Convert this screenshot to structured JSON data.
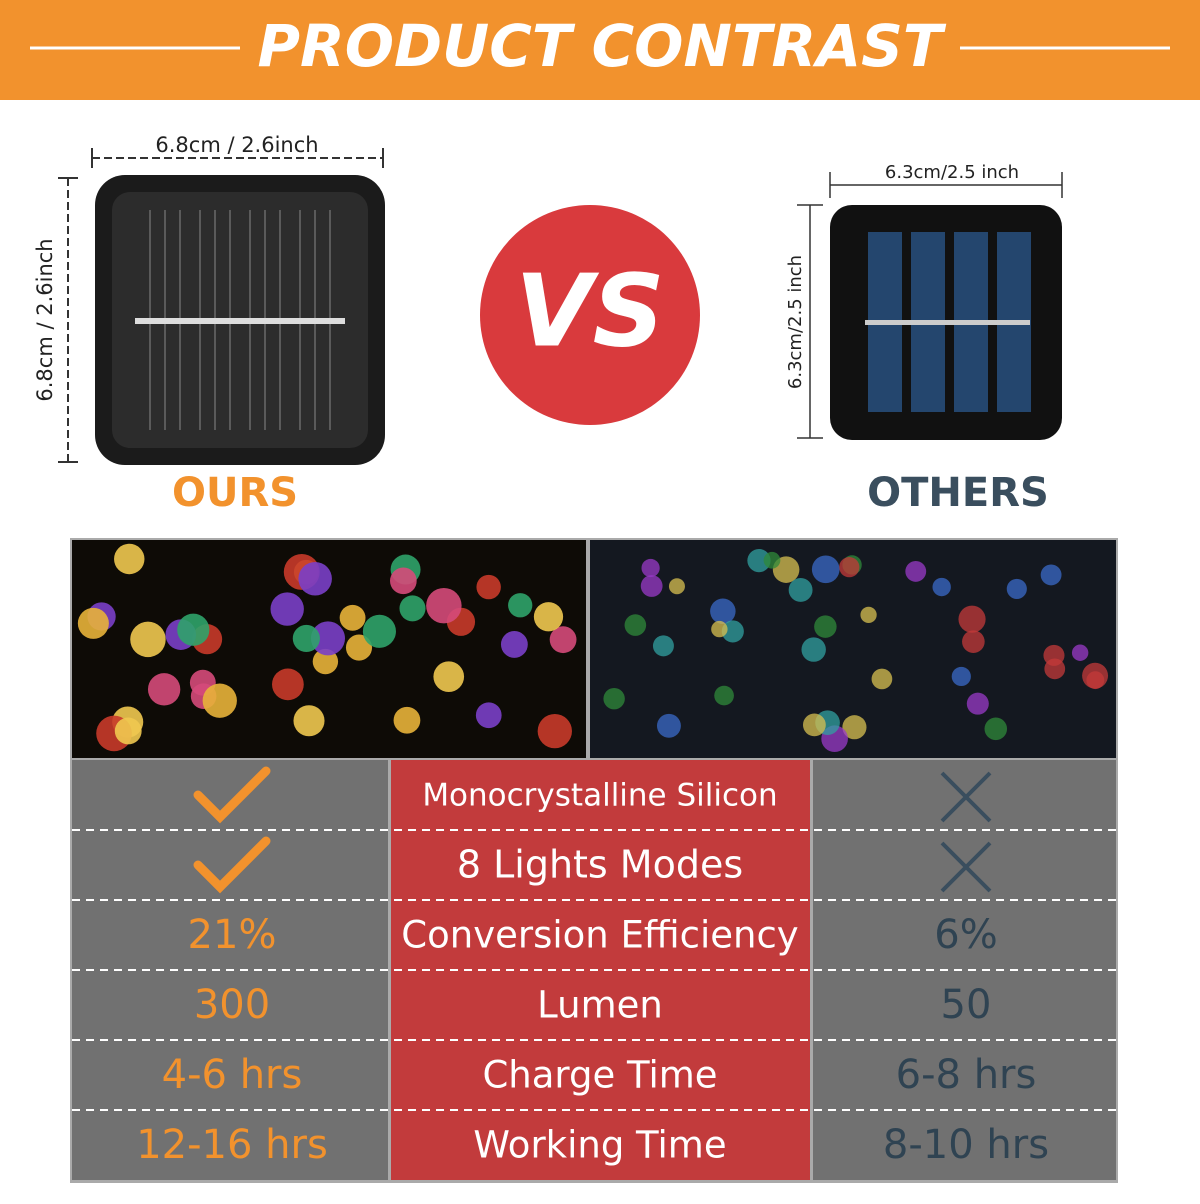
{
  "header": {
    "title": "PRODUCT CONTRAST"
  },
  "ours": {
    "width_label": "6.8cm / 2.6inch",
    "height_label": "6.8cm / 2.6inch",
    "label": "OURS"
  },
  "vs": "VS",
  "others": {
    "width_label": "6.3cm/2.5 inch",
    "height_label": "6.3cm/2.5 inch",
    "label": "OTHERS"
  },
  "table": {
    "rows": [
      {
        "ours_mark": "check",
        "feature": "Monocrystalline Silicon",
        "others_mark": "cross"
      },
      {
        "ours_mark": "check",
        "feature": "8 Lights Modes",
        "others_mark": "cross"
      },
      {
        "ours": "21%",
        "feature": "Conversion Efficiency",
        "others": "6%"
      },
      {
        "ours": "300",
        "feature": "Lumen",
        "others": "50"
      },
      {
        "ours": "4-6 hrs",
        "feature": "Charge Time",
        "others": "6-8 hrs"
      },
      {
        "ours": "12-16 hrs",
        "feature": "Working Time",
        "others": "8-10 hrs"
      }
    ]
  }
}
